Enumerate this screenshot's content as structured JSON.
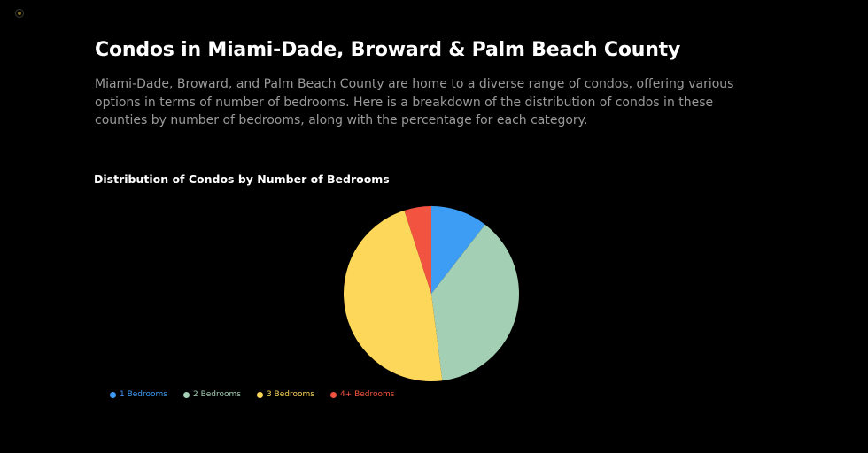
{
  "page": {
    "title": "Condos in Miami-Dade, Broward & Palm Beach County",
    "intro": "Miami-Dade, Broward, and Palm Beach County are home to a diverse range of condos, offering various options in terms of number of bedrooms. Here is a breakdown of the distribution of condos in these counties by number of bedrooms, along with the percentage for each category."
  },
  "chart_data": {
    "type": "pie",
    "title": "Distribution of Condos by Number of Bedrooms",
    "categories": [
      "1 Bedrooms",
      "2 Bedrooms",
      "3 Bedrooms",
      "4+ Bedrooms"
    ],
    "values": [
      10.5,
      37.5,
      47,
      5
    ],
    "colors": [
      "#3d9df5",
      "#a3cfb4",
      "#fdd75a",
      "#f25240"
    ],
    "legend_position": "bottom-left"
  }
}
